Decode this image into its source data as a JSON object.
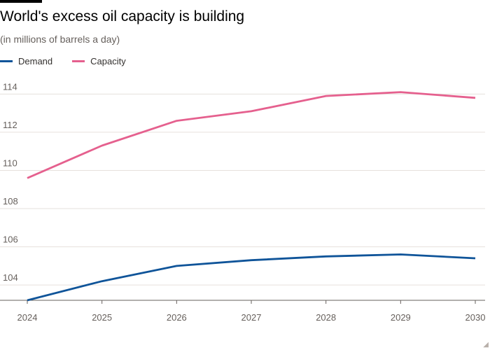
{
  "header": {
    "title": "World's excess oil capacity is building",
    "subtitle": "(in millions of barrels a day)"
  },
  "colors": {
    "demand": "#0f5499",
    "capacity": "#e5608e",
    "grid": "#e6e1dc",
    "axis": "#66605c"
  },
  "chart_data": {
    "type": "line",
    "title": "World's excess oil capacity is building",
    "subtitle": "(in millions of barrels a day)",
    "xlabel": "",
    "ylabel": "",
    "x": [
      2024,
      2025,
      2026,
      2027,
      2028,
      2029,
      2030
    ],
    "x_tick_labels": [
      "2024",
      "2025",
      "2026",
      "2027",
      "2028",
      "2029",
      "2030"
    ],
    "y_ticks": [
      104,
      106,
      108,
      110,
      112,
      114
    ],
    "y_tick_labels": [
      "104",
      "106",
      "108",
      "110",
      "112",
      "114"
    ],
    "ylim": [
      103.2,
      114.6
    ],
    "grid": true,
    "legend_position": "top-left",
    "series": [
      {
        "name": "Demand",
        "color": "#0f5499",
        "values": [
          103.2,
          104.2,
          105.0,
          105.3,
          105.5,
          105.6,
          105.4
        ]
      },
      {
        "name": "Capacity",
        "color": "#e5608e",
        "values": [
          109.6,
          111.3,
          112.6,
          113.1,
          113.9,
          114.1,
          113.8
        ]
      }
    ]
  }
}
